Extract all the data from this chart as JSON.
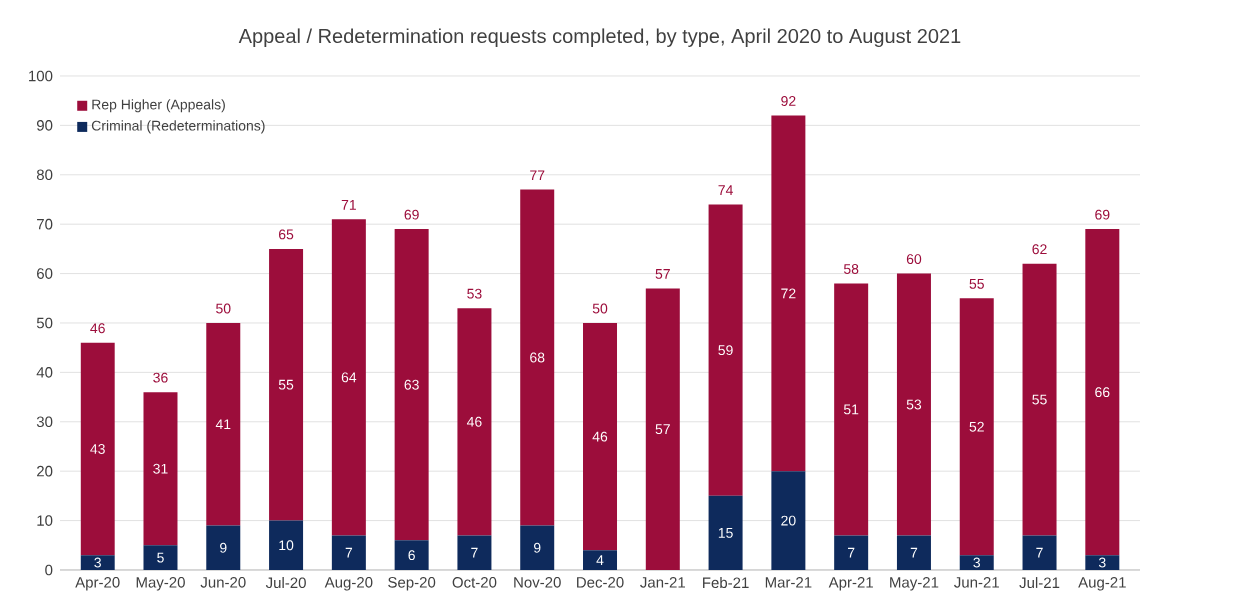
{
  "chart_data": {
    "type": "bar",
    "stacked": true,
    "title": "Appeal / Redetermination requests completed, by type, April 2020 to August 2021",
    "categories": [
      "Apr-20",
      "May-20",
      "Jun-20",
      "Jul-20",
      "Aug-20",
      "Sep-20",
      "Oct-20",
      "Nov-20",
      "Dec-20",
      "Jan-21",
      "Feb-21",
      "Mar-21",
      "Apr-21",
      "May-21",
      "Jun-21",
      "Jul-21",
      "Aug-21"
    ],
    "series": [
      {
        "name": "Criminal (Redeterminations)",
        "color": "#0e2a5c",
        "values": [
          3,
          5,
          9,
          10,
          7,
          6,
          7,
          9,
          4,
          0,
          15,
          20,
          7,
          7,
          3,
          7,
          3
        ],
        "value_labels": [
          "3",
          "5",
          "9",
          "10",
          "7",
          "6",
          "7",
          "9",
          "4",
          null,
          "15",
          "20",
          "7",
          "7",
          "3",
          "7",
          "3"
        ]
      },
      {
        "name": "Rep Higher (Appeals)",
        "color": "#9c0d3b",
        "values": [
          43,
          31,
          41,
          55,
          64,
          63,
          46,
          68,
          46,
          57,
          59,
          72,
          51,
          53,
          52,
          55,
          66
        ],
        "value_labels": [
          "43",
          "31",
          "41",
          "55",
          "64",
          "63",
          "46",
          "68",
          "46",
          "57",
          "59",
          "72",
          "51",
          "53",
          "52",
          "55",
          "66"
        ]
      }
    ],
    "totals": [
      "46",
      "36",
      "50",
      "65",
      "71",
      "69",
      "53",
      "77",
      "50",
      "57",
      "74",
      "92",
      "58",
      "60",
      "55",
      "62",
      "69"
    ],
    "ylim": [
      0,
      100
    ],
    "yticks": [
      0,
      10,
      20,
      30,
      40,
      50,
      60,
      70,
      80,
      90,
      100
    ],
    "grid": "y",
    "legend": "top left"
  }
}
